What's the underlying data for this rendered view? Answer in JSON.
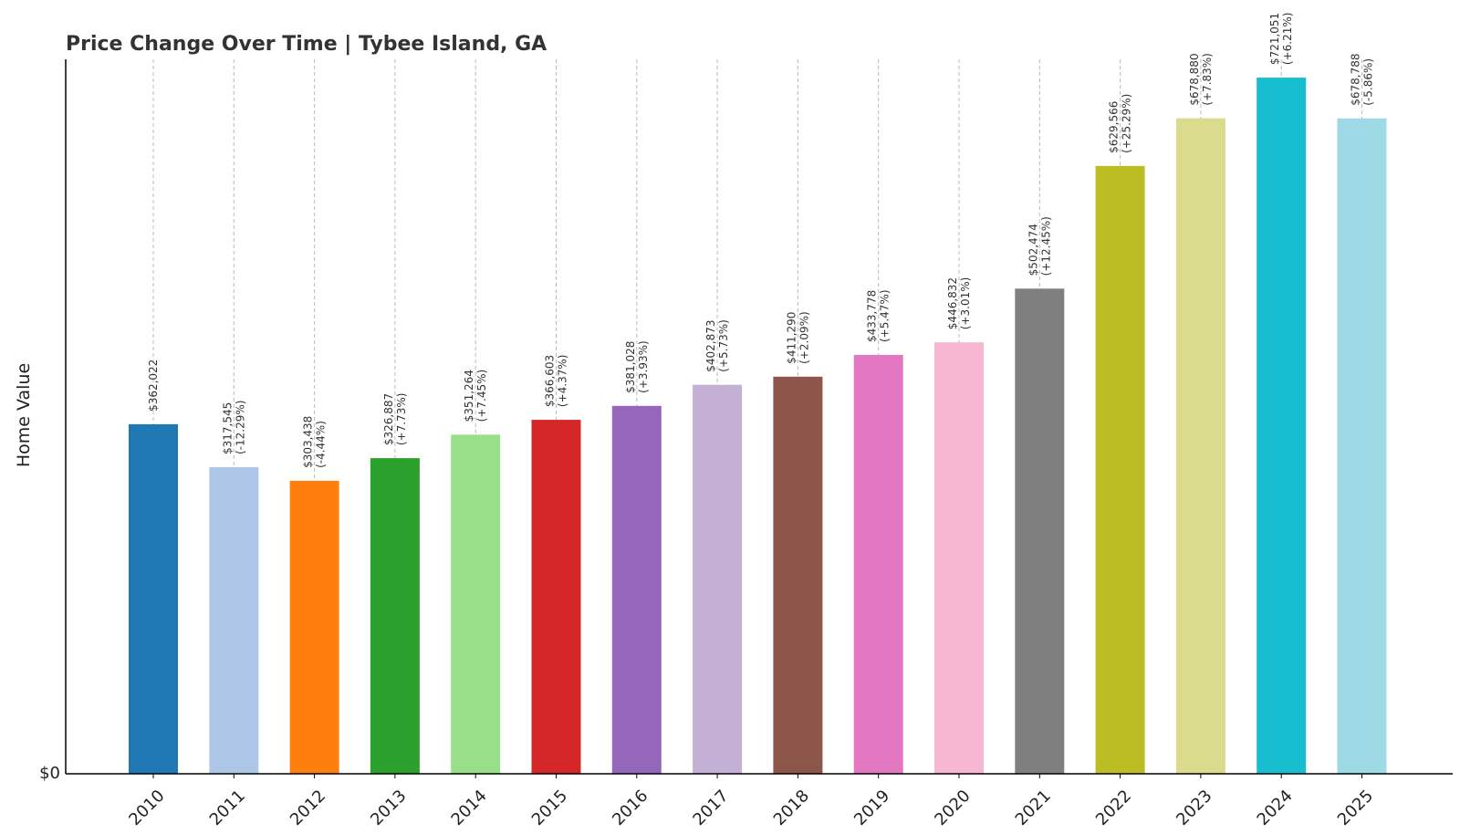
{
  "chart_data": {
    "type": "bar",
    "title": "Price Change Over Time | Tybee Island, GA",
    "xlabel": "",
    "ylabel": "Home Value",
    "y_tick_labels": [
      "$0"
    ],
    "ylim": [
      0,
      740000
    ],
    "grid": "vertical dashed",
    "legend": "none",
    "categories": [
      "2010",
      "2011",
      "2012",
      "2013",
      "2014",
      "2015",
      "2016",
      "2017",
      "2018",
      "2019",
      "2020",
      "2021",
      "2022",
      "2023",
      "2024",
      "2025"
    ],
    "values": [
      362022,
      317545,
      303438,
      326887,
      351264,
      366603,
      381028,
      402873,
      411290,
      433778,
      446832,
      502474,
      629566,
      678880,
      721051,
      678788
    ],
    "value_labels": [
      "$362,022",
      "$317,545",
      "$303,438",
      "$326,887",
      "$351,264",
      "$366,603",
      "$381,028",
      "$402,873",
      "$411,290",
      "$433,778",
      "$446,832",
      "$502,474",
      "$629,566",
      "$678,880",
      "$721,051",
      "$678,788"
    ],
    "change_labels": [
      "",
      "(-12.29%)",
      "(-4.44%)",
      "(+7.73%)",
      "(+7.45%)",
      "(+4.37%)",
      "(+3.93%)",
      "(+5.73%)",
      "(+2.09%)",
      "(+5.47%)",
      "(+3.01%)",
      "(+12.45%)",
      "(+25.29%)",
      "(+7.83%)",
      "(+6.21%)",
      "(-5.86%)"
    ],
    "colors": [
      "#1f77b4",
      "#aec7e8",
      "#ff7f0e",
      "#2ca02c",
      "#98df8a",
      "#d62728",
      "#9467bd",
      "#c5b0d5",
      "#8c564b",
      "#e377c2",
      "#f7b6d2",
      "#7f7f7f",
      "#bcbd22",
      "#dbdb8d",
      "#17becf",
      "#9edae5"
    ]
  }
}
